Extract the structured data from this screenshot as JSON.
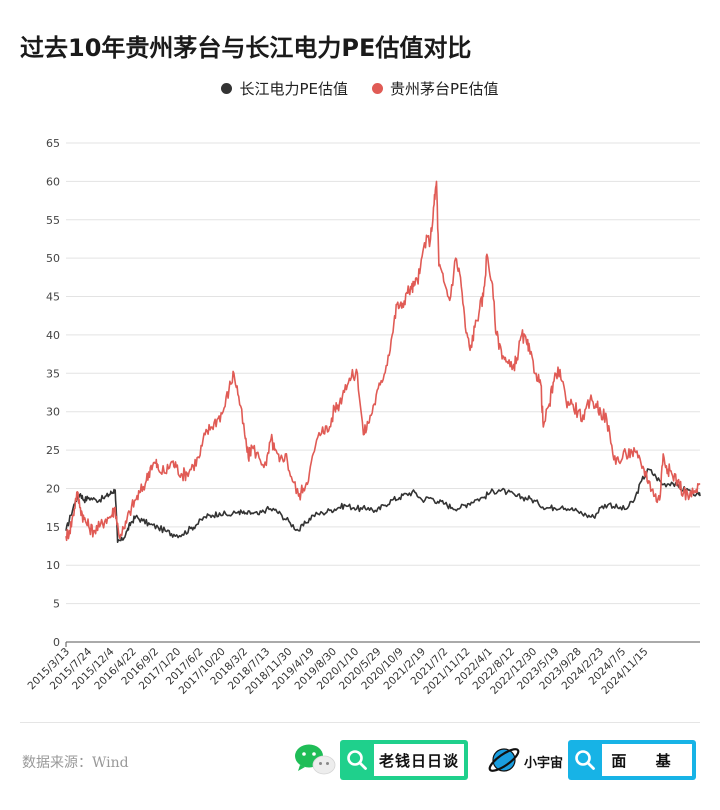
{
  "chart_data": {
    "type": "line",
    "title": "过去10年贵州茅台与长江电力PE估值对比",
    "ylim": [
      0,
      65
    ],
    "yticks": [
      0,
      5,
      10,
      15,
      20,
      25,
      30,
      35,
      40,
      45,
      50,
      55,
      60,
      65
    ],
    "xlim": [
      "2015-03-13",
      "2025-04-30"
    ],
    "xtick_labels": [
      "2015/3/13",
      "2015/7/24",
      "2015/12/4",
      "2016/4/22",
      "2016/9/2",
      "2017/1/20",
      "2017/6/2",
      "2017/10/20",
      "2018/3/2",
      "2018/7/13",
      "2018/11/30",
      "2019/4/19",
      "2019/8/30",
      "2020/1/10",
      "2020/5/29",
      "2020/10/9",
      "2021/2/19",
      "2021/7/2",
      "2021/11/12",
      "2022/4/1",
      "2022/8/12",
      "2022/12/30",
      "2023/5/19",
      "2023/9/28",
      "2024/2/23",
      "2024/7/5",
      "2024/11/15"
    ],
    "grid": "horizontal",
    "legend_position": "top-center",
    "series": [
      {
        "name": "长江电力PE估值",
        "color": "#333333",
        "points": [
          [
            "2015-03-13",
            14.5
          ],
          [
            "2015-04-10",
            16.5
          ],
          [
            "2015-05-08",
            18.5
          ],
          [
            "2015-06-05",
            19.3
          ],
          [
            "2015-06-26",
            18.5
          ],
          [
            "2015-07-24",
            18.8
          ],
          [
            "2015-09-04",
            18.5
          ],
          [
            "2015-10-16",
            18.7
          ],
          [
            "2015-11-20",
            19.2
          ],
          [
            "2015-12-04",
            19.5
          ],
          [
            "2015-12-25",
            19.8
          ],
          [
            "2016-01-08",
            13.0
          ],
          [
            "2016-02-05",
            13.3
          ],
          [
            "2016-03-04",
            14.5
          ],
          [
            "2016-03-25",
            15.5
          ],
          [
            "2016-04-22",
            16.3
          ],
          [
            "2016-06-03",
            15.8
          ],
          [
            "2016-07-15",
            15.3
          ],
          [
            "2016-09-02",
            14.9
          ],
          [
            "2016-10-21",
            14.4
          ],
          [
            "2016-12-02",
            14.0
          ],
          [
            "2017-01-20",
            14.0
          ],
          [
            "2017-03-10",
            14.8
          ],
          [
            "2017-04-14",
            15.3
          ],
          [
            "2017-06-02",
            16.3
          ],
          [
            "2017-07-14",
            16.5
          ],
          [
            "2017-08-25",
            16.8
          ],
          [
            "2017-10-20",
            16.5
          ],
          [
            "2017-12-15",
            17.0
          ],
          [
            "2018-01-19",
            16.7
          ],
          [
            "2018-03-02",
            16.8
          ],
          [
            "2018-04-13",
            16.6
          ],
          [
            "2018-05-25",
            17.3
          ],
          [
            "2018-07-13",
            17.2
          ],
          [
            "2018-08-24",
            16.5
          ],
          [
            "2018-10-12",
            15.5
          ],
          [
            "2018-11-30",
            14.5
          ],
          [
            "2019-01-11",
            15.5
          ],
          [
            "2019-02-22",
            16.5
          ],
          [
            "2019-04-19",
            16.8
          ],
          [
            "2019-06-07",
            17.2
          ],
          [
            "2019-07-19",
            17.5
          ],
          [
            "2019-08-30",
            17.8
          ],
          [
            "2019-10-18",
            17.5
          ],
          [
            "2019-12-06",
            17.3
          ],
          [
            "2020-01-10",
            17.5
          ],
          [
            "2020-02-28",
            17.0
          ],
          [
            "2020-04-10",
            17.8
          ],
          [
            "2020-05-29",
            18.5
          ],
          [
            "2020-07-10",
            18.8
          ],
          [
            "2020-08-21",
            19.3
          ],
          [
            "2020-10-09",
            19.5
          ],
          [
            "2020-11-20",
            18.5
          ],
          [
            "2021-01-08",
            18.8
          ],
          [
            "2021-02-19",
            18.3
          ],
          [
            "2021-04-02",
            18.0
          ],
          [
            "2021-05-14",
            17.5
          ],
          [
            "2021-07-02",
            17.5
          ],
          [
            "2021-08-13",
            18.0
          ],
          [
            "2021-09-24",
            18.5
          ],
          [
            "2021-11-12",
            18.8
          ],
          [
            "2021-12-24",
            19.5
          ],
          [
            "2022-02-11",
            19.8
          ],
          [
            "2022-04-01",
            19.5
          ],
          [
            "2022-05-20",
            19.0
          ],
          [
            "2022-07-01",
            18.8
          ],
          [
            "2022-08-12",
            18.7
          ],
          [
            "2022-09-30",
            18.0
          ],
          [
            "2022-11-18",
            17.5
          ],
          [
            "2022-12-30",
            17.5
          ],
          [
            "2023-02-17",
            17.7
          ],
          [
            "2023-04-07",
            17.3
          ],
          [
            "2023-05-19",
            17.0
          ],
          [
            "2023-07-07",
            16.5
          ],
          [
            "2023-08-18",
            16.3
          ],
          [
            "2023-09-28",
            17.5
          ],
          [
            "2023-11-17",
            18.0
          ],
          [
            "2024-01-05",
            17.5
          ],
          [
            "2024-02-23",
            17.3
          ],
          [
            "2024-04-12",
            18.5
          ],
          [
            "2024-05-24",
            21.0
          ],
          [
            "2024-07-05",
            22.5
          ],
          [
            "2024-08-16",
            21.5
          ],
          [
            "2024-09-27",
            20.5
          ],
          [
            "2024-11-15",
            20.8
          ],
          [
            "2025-01-03",
            20.0
          ],
          [
            "2025-02-21",
            19.8
          ],
          [
            "2025-04-11",
            19.3
          ],
          [
            "2025-04-30",
            19.0
          ]
        ]
      },
      {
        "name": "贵州茅台PE估值",
        "color": "#e05b55",
        "points": [
          [
            "2015-03-13",
            13.8
          ],
          [
            "2015-04-03",
            14.5
          ],
          [
            "2015-04-24",
            16.5
          ],
          [
            "2015-05-15",
            19.5
          ],
          [
            "2015-06-05",
            17.5
          ],
          [
            "2015-06-26",
            16.0
          ],
          [
            "2015-07-24",
            15.0
          ],
          [
            "2015-08-21",
            14.5
          ],
          [
            "2015-09-25",
            15.0
          ],
          [
            "2015-10-30",
            16.0
          ],
          [
            "2015-12-04",
            16.5
          ],
          [
            "2015-12-25",
            17.5
          ],
          [
            "2016-01-15",
            14.0
          ],
          [
            "2016-02-19",
            14.8
          ],
          [
            "2016-03-18",
            17.0
          ],
          [
            "2016-04-22",
            18.5
          ],
          [
            "2016-05-20",
            19.5
          ],
          [
            "2016-06-24",
            21.0
          ],
          [
            "2016-07-22",
            23.0
          ],
          [
            "2016-08-19",
            23.3
          ],
          [
            "2016-09-02",
            22.5
          ],
          [
            "2016-10-14",
            22.0
          ],
          [
            "2016-11-18",
            23.5
          ],
          [
            "2016-12-16",
            22.8
          ],
          [
            "2017-01-20",
            21.8
          ],
          [
            "2017-02-17",
            22.0
          ],
          [
            "2017-03-24",
            23.0
          ],
          [
            "2017-04-28",
            24.0
          ],
          [
            "2017-06-02",
            27.0
          ],
          [
            "2017-07-07",
            28.0
          ],
          [
            "2017-08-11",
            29.0
          ],
          [
            "2017-09-15",
            30.0
          ],
          [
            "2017-10-20",
            33.0
          ],
          [
            "2017-11-17",
            35.0
          ],
          [
            "2017-12-15",
            32.0
          ],
          [
            "2018-01-19",
            27.0
          ],
          [
            "2018-02-09",
            24.0
          ],
          [
            "2018-03-02",
            25.5
          ],
          [
            "2018-04-13",
            24.0
          ],
          [
            "2018-05-25",
            23.0
          ],
          [
            "2018-06-22",
            26.5
          ],
          [
            "2018-07-13",
            25.0
          ],
          [
            "2018-08-10",
            23.5
          ],
          [
            "2018-09-14",
            24.5
          ],
          [
            "2018-10-19",
            21.5
          ],
          [
            "2018-11-30",
            19.0
          ],
          [
            "2018-12-28",
            20.0
          ],
          [
            "2019-02-01",
            22.0
          ],
          [
            "2019-03-08",
            25.5
          ],
          [
            "2019-04-19",
            28.0
          ],
          [
            "2019-05-24",
            27.5
          ],
          [
            "2019-06-28",
            30.5
          ],
          [
            "2019-07-26",
            31.0
          ],
          [
            "2019-08-30",
            33.5
          ],
          [
            "2019-10-04",
            34.5
          ],
          [
            "2019-11-08",
            35.0
          ],
          [
            "2019-12-13",
            27.0
          ],
          [
            "2020-01-10",
            28.5
          ],
          [
            "2020-02-14",
            31.0
          ],
          [
            "2020-03-20",
            33.5
          ],
          [
            "2020-04-24",
            36.0
          ],
          [
            "2020-05-29",
            40.0
          ],
          [
            "2020-06-26",
            44.0
          ],
          [
            "2020-07-24",
            43.5
          ],
          [
            "2020-08-21",
            45.5
          ],
          [
            "2020-09-18",
            46.0
          ],
          [
            "2020-10-09",
            46.5
          ],
          [
            "2020-11-06",
            48.0
          ],
          [
            "2020-12-04",
            52.0
          ],
          [
            "2021-01-08",
            52.5
          ],
          [
            "2021-01-29",
            57.0
          ],
          [
            "2021-02-12",
            60.0
          ],
          [
            "2021-02-26",
            49.0
          ],
          [
            "2021-03-26",
            47.0
          ],
          [
            "2021-04-30",
            44.5
          ],
          [
            "2021-06-04",
            50.0
          ],
          [
            "2021-07-02",
            47.5
          ],
          [
            "2021-07-30",
            41.0
          ],
          [
            "2021-08-27",
            38.0
          ],
          [
            "2021-09-24",
            41.0
          ],
          [
            "2021-10-22",
            43.5
          ],
          [
            "2021-11-12",
            45.0
          ],
          [
            "2021-12-03",
            50.5
          ],
          [
            "2021-12-31",
            47.0
          ],
          [
            "2022-01-28",
            40.0
          ],
          [
            "2022-02-25",
            38.0
          ],
          [
            "2022-03-25",
            36.5
          ],
          [
            "2022-04-29",
            35.5
          ],
          [
            "2022-05-27",
            37.0
          ],
          [
            "2022-06-24",
            40.0
          ],
          [
            "2022-07-22",
            39.0
          ],
          [
            "2022-08-12",
            37.5
          ],
          [
            "2022-09-16",
            35.0
          ],
          [
            "2022-10-14",
            33.5
          ],
          [
            "2022-10-28",
            28.0
          ],
          [
            "2022-12-02",
            31.0
          ],
          [
            "2022-12-30",
            34.0
          ],
          [
            "2023-02-03",
            35.5
          ],
          [
            "2023-03-10",
            31.5
          ],
          [
            "2023-04-14",
            31.0
          ],
          [
            "2023-05-19",
            30.0
          ],
          [
            "2023-06-23",
            29.0
          ],
          [
            "2023-07-28",
            31.5
          ],
          [
            "2023-09-01",
            31.0
          ],
          [
            "2023-09-28",
            30.0
          ],
          [
            "2023-11-03",
            29.0
          ],
          [
            "2023-12-08",
            24.5
          ],
          [
            "2024-01-12",
            23.5
          ],
          [
            "2024-02-23",
            24.5
          ],
          [
            "2024-03-29",
            24.8
          ],
          [
            "2024-05-03",
            24.0
          ],
          [
            "2024-06-07",
            22.5
          ],
          [
            "2024-07-05",
            21.0
          ],
          [
            "2024-08-09",
            19.0
          ],
          [
            "2024-09-06",
            18.5
          ],
          [
            "2024-09-27",
            24.5
          ],
          [
            "2024-10-25",
            22.5
          ],
          [
            "2024-11-15",
            22.0
          ],
          [
            "2024-12-20",
            21.0
          ],
          [
            "2025-01-24",
            19.5
          ],
          [
            "2025-02-28",
            19.0
          ],
          [
            "2025-04-04",
            19.5
          ],
          [
            "2025-04-30",
            20.5
          ]
        ]
      }
    ]
  },
  "footer": {
    "source": "数据来源：Wind",
    "brand1_label": "老钱日日谈",
    "brand2_name": "小宇宙",
    "brand2_label": "面 基"
  }
}
